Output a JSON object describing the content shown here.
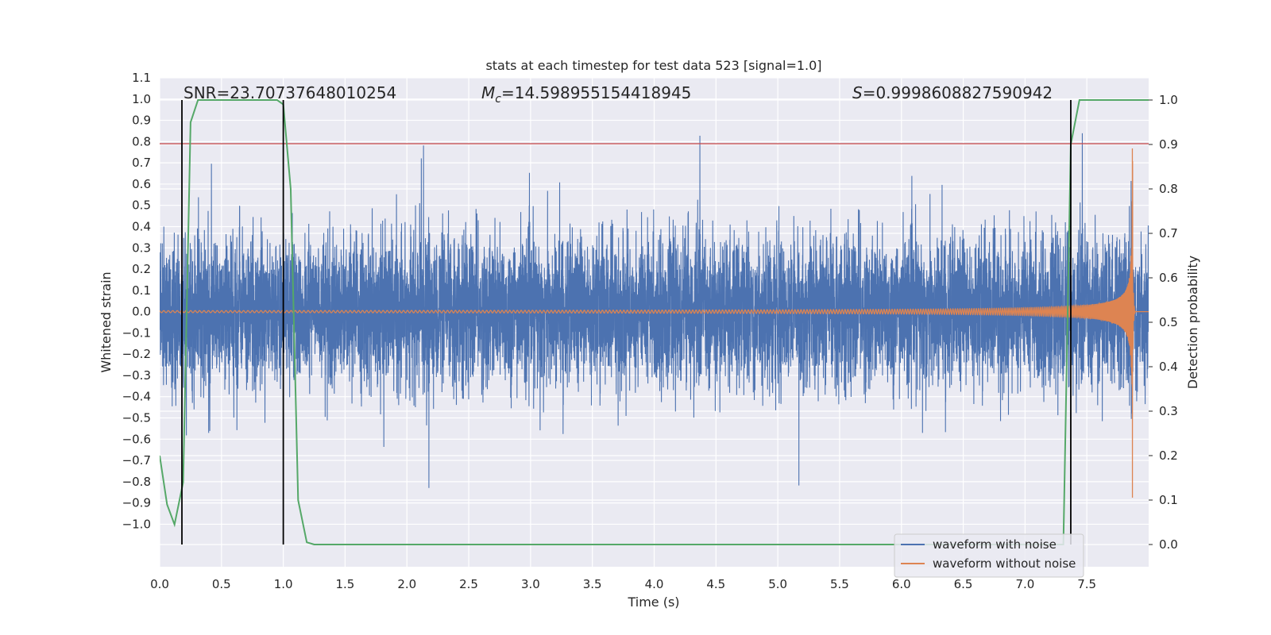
{
  "chart_data": {
    "type": "line",
    "title": "stats at each timestep for test data 523 [signal=1.0]",
    "xlabel": "Time (s)",
    "ylabel_left": "Whitened strain",
    "ylabel_right": "Detection probability",
    "xlim": [
      0.0,
      8.0
    ],
    "ylim_left": [
      -1.2,
      1.1
    ],
    "ylim_right": [
      -0.05,
      1.05
    ],
    "x_ticks": [
      "0.0",
      "0.5",
      "1.0",
      "1.5",
      "2.0",
      "2.5",
      "3.0",
      "3.5",
      "4.0",
      "4.5",
      "5.0",
      "5.5",
      "6.0",
      "6.5",
      "7.0",
      "7.5"
    ],
    "y_ticks_left": [
      "1.1",
      "1.0",
      "0.9",
      "0.8",
      "0.7",
      "0.6",
      "0.5",
      "0.4",
      "0.3",
      "0.2",
      "0.1",
      "0.0",
      "−0.1",
      "−0.2",
      "−0.3",
      "−0.4",
      "−0.5",
      "−0.6",
      "−0.7",
      "−0.8",
      "−0.9",
      "−1.0"
    ],
    "y_ticks_right": [
      "1.0",
      "0.9",
      "0.8",
      "0.7",
      "0.6",
      "0.5",
      "0.4",
      "0.3",
      "0.2",
      "0.1",
      "0.0"
    ],
    "grid": true,
    "annotations": {
      "snr_text": "SNR=23.70737648010254",
      "mc_symbol": "M",
      "mc_subscript": "c",
      "mc_value": "=14.598955154418945",
      "s_symbol": "S",
      "s_value": "=0.9998608827590942"
    },
    "threshold_line": {
      "y": 0.79,
      "color": "#c44e52"
    },
    "vertical_markers": [
      0.18,
      1.0,
      7.37
    ],
    "marker_range_right": [
      0.0,
      1.0
    ],
    "series": [
      {
        "name": "waveform with noise",
        "color": "#4c72b0",
        "axis": "left",
        "description_envelope": {
          "typical_amplitude": 0.3,
          "peak": 0.98
        }
      },
      {
        "name": "waveform without noise",
        "color": "#dd8452",
        "axis": "left",
        "merger_time": 7.87,
        "peak_amplitude": 0.88
      },
      {
        "name": "detection probability",
        "color": "#55a868",
        "axis": "right",
        "x": [
          0.0,
          0.06,
          0.12,
          0.19,
          0.25,
          0.31,
          0.4,
          0.6,
          0.8,
          0.95,
          1.0,
          1.06,
          1.12,
          1.19,
          1.25,
          3.0,
          5.0,
          7.0,
          7.31,
          7.37,
          7.44,
          7.5,
          7.8,
          8.0
        ],
        "y": [
          0.2,
          0.09,
          0.045,
          0.14,
          0.95,
          1.0,
          1.0,
          1.0,
          1.0,
          1.0,
          0.99,
          0.8,
          0.1,
          0.005,
          0.0,
          0.0,
          0.0,
          0.0,
          0.0,
          0.9,
          1.0,
          1.0,
          1.0,
          1.0
        ]
      }
    ],
    "legend": {
      "placement": "lower-right",
      "entries": [
        "waveform with noise",
        "waveform without noise"
      ]
    }
  }
}
